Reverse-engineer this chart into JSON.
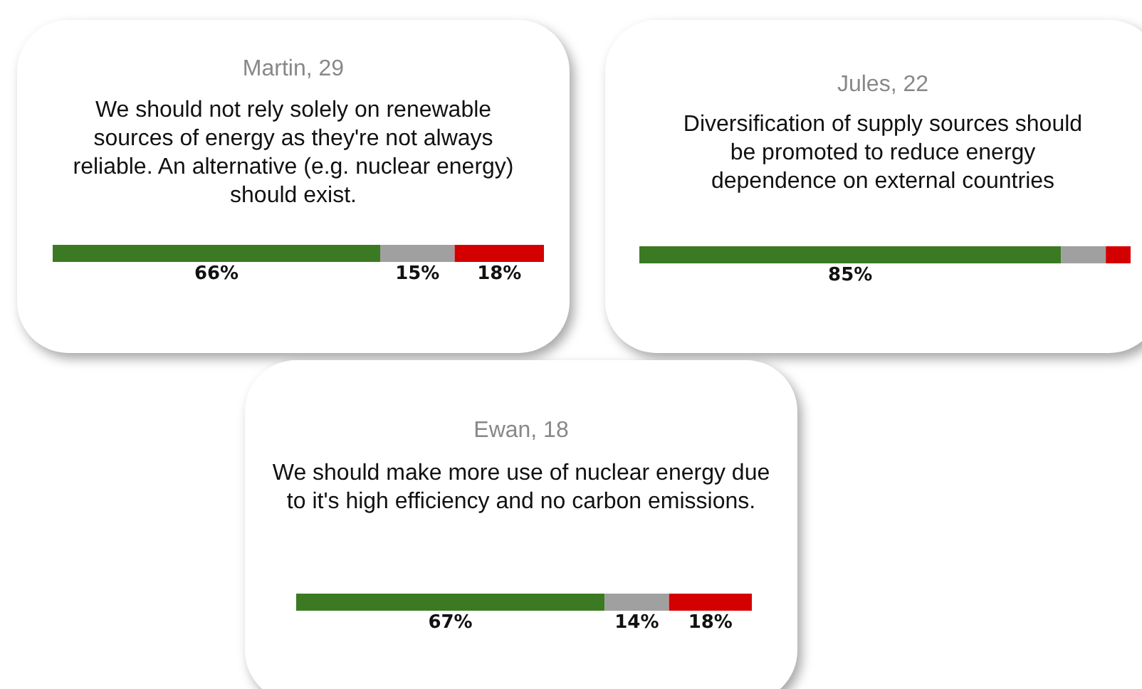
{
  "chart_data": [
    {
      "type": "bar",
      "orientation": "horizontal",
      "stacked": true,
      "title": "Martin, 29",
      "subtitle": "We should not rely solely on renewable sources of energy as they're not always reliable. An alternative (e.g. nuclear energy) should exist.",
      "categories": [
        null
      ],
      "series": [
        {
          "color": "#3b7a22",
          "values": [
            66
          ],
          "value_labels": [
            "66%"
          ]
        },
        {
          "color": "#a0a0a0",
          "values": [
            15
          ],
          "value_labels": [
            "15%"
          ]
        },
        {
          "color": "#d40000",
          "values": [
            18
          ],
          "value_labels": [
            "18%"
          ]
        }
      ]
    },
    {
      "type": "bar",
      "orientation": "horizontal",
      "stacked": true,
      "title": "Jules, 22",
      "subtitle": "Diversification of supply sources should be promoted to reduce energy dependence on external countries",
      "categories": [
        null
      ],
      "series": [
        {
          "color": "#3b7a22",
          "values": [
            85
          ],
          "value_labels": [
            "85%"
          ]
        },
        {
          "color": "#a0a0a0",
          "values": [
            9
          ],
          "value_labels": [
            null
          ]
        },
        {
          "color": "#d40000",
          "values": [
            5
          ],
          "value_labels": [
            null
          ]
        }
      ]
    },
    {
      "type": "bar",
      "orientation": "horizontal",
      "stacked": true,
      "title": "Ewan, 18",
      "subtitle": "We should make more use of nuclear energy due to it's high efficiency and no carbon emissions.",
      "categories": [
        null
      ],
      "series": [
        {
          "color": "#3b7a22",
          "values": [
            67
          ],
          "value_labels": [
            "67%"
          ]
        },
        {
          "color": "#a0a0a0",
          "values": [
            14
          ],
          "value_labels": [
            "14%"
          ]
        },
        {
          "color": "#d40000",
          "values": [
            18
          ],
          "value_labels": [
            "18%"
          ]
        }
      ]
    }
  ]
}
